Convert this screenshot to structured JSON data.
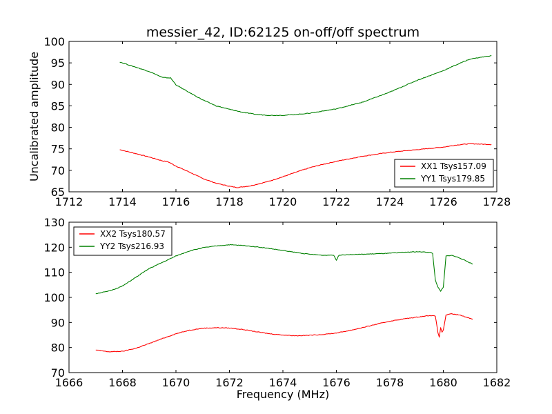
{
  "chart_data": [
    {
      "type": "line",
      "title": "messier_42, ID:62125 on-off/off spectrum",
      "xlabel": "",
      "ylabel": "Uncalibrated amplitude",
      "xlim": [
        1712,
        1728
      ],
      "ylim": [
        65,
        100
      ],
      "xticks": [
        "1712",
        "1714",
        "1716",
        "1718",
        "1720",
        "1722",
        "1724",
        "1726",
        "1728"
      ],
      "yticks": [
        "65",
        "70",
        "75",
        "80",
        "85",
        "90",
        "95",
        "100"
      ],
      "legend_position": "lower-right",
      "grid": false,
      "series": [
        {
          "name": "XX1 Tsys157.09",
          "color": "#ff0000",
          "x": [
            1713.9,
            1714.5,
            1715.0,
            1715.5,
            1715.7,
            1716.0,
            1716.5,
            1717.0,
            1717.5,
            1718.0,
            1718.3,
            1718.8,
            1719.5,
            1720.0,
            1720.5,
            1721.0,
            1721.5,
            1722.0,
            1723.0,
            1724.0,
            1725.0,
            1726.0,
            1726.5,
            1727.0,
            1727.8
          ],
          "y": [
            74.8,
            73.9,
            73.1,
            72.2,
            72.0,
            71.0,
            69.6,
            68.1,
            67.0,
            66.3,
            66.0,
            66.4,
            67.5,
            68.5,
            69.6,
            70.6,
            71.4,
            72.1,
            73.3,
            74.2,
            74.8,
            75.4,
            75.9,
            76.2,
            76.0
          ]
        },
        {
          "name": "YY1 Tsys179.85",
          "color": "#008000",
          "x": [
            1713.9,
            1714.5,
            1715.0,
            1715.5,
            1715.8,
            1716.0,
            1716.5,
            1717.0,
            1717.5,
            1718.0,
            1718.5,
            1719.0,
            1719.5,
            1720.0,
            1720.5,
            1721.0,
            1721.5,
            1722.0,
            1723.0,
            1724.0,
            1725.0,
            1726.0,
            1726.5,
            1727.0,
            1727.8
          ],
          "y": [
            95.2,
            94.0,
            93.0,
            91.6,
            91.5,
            89.9,
            88.1,
            86.4,
            85.0,
            84.2,
            83.5,
            83.0,
            82.8,
            82.8,
            83.0,
            83.3,
            83.8,
            84.3,
            85.9,
            88.2,
            90.9,
            93.2,
            94.6,
            95.9,
            96.7
          ]
        }
      ]
    },
    {
      "type": "line",
      "title": "",
      "xlabel": "Frequency (MHz)",
      "ylabel": "",
      "xlim": [
        1666,
        1682
      ],
      "ylim": [
        70,
        130
      ],
      "xticks": [
        "1666",
        "1668",
        "1670",
        "1672",
        "1674",
        "1676",
        "1678",
        "1680",
        "1682"
      ],
      "yticks": [
        "70",
        "80",
        "90",
        "100",
        "110",
        "120",
        "130"
      ],
      "legend_position": "upper-left",
      "grid": false,
      "series": [
        {
          "name": "XX2 Tsys180.57",
          "color": "#ff0000",
          "x": [
            1667.0,
            1667.5,
            1668.0,
            1668.5,
            1669.0,
            1669.5,
            1670.0,
            1670.5,
            1671.0,
            1671.5,
            1672.0,
            1672.5,
            1673.0,
            1673.5,
            1674.0,
            1674.5,
            1675.0,
            1675.5,
            1676.0,
            1676.5,
            1677.0,
            1677.5,
            1678.0,
            1678.5,
            1679.0,
            1679.5,
            1679.7,
            1679.8,
            1679.85,
            1679.9,
            1679.95,
            1680.0,
            1680.1,
            1680.3,
            1680.6,
            1681.1
          ],
          "y": [
            79.0,
            78.3,
            78.5,
            79.7,
            81.6,
            83.6,
            85.5,
            86.9,
            87.7,
            87.9,
            87.8,
            87.2,
            86.3,
            85.5,
            85.0,
            84.7,
            84.9,
            85.2,
            85.8,
            86.8,
            88.0,
            89.3,
            90.5,
            91.4,
            92.1,
            92.8,
            92.5,
            86.0,
            84.0,
            88.0,
            86.0,
            87.0,
            93.0,
            93.4,
            93.0,
            91.3
          ]
        },
        {
          "name": "YY2 Tsys216.93",
          "color": "#008000",
          "x": [
            1667.0,
            1667.5,
            1668.0,
            1668.5,
            1669.0,
            1669.5,
            1670.0,
            1670.5,
            1671.0,
            1671.5,
            1672.0,
            1672.5,
            1673.0,
            1673.5,
            1674.0,
            1674.5,
            1675.0,
            1675.5,
            1675.9,
            1676.0,
            1676.1,
            1676.5,
            1677.0,
            1677.5,
            1678.0,
            1678.5,
            1679.0,
            1679.5,
            1679.6,
            1679.7,
            1679.8,
            1679.9,
            1680.0,
            1680.1,
            1680.3,
            1680.6,
            1681.1
          ],
          "y": [
            101.5,
            102.5,
            104.5,
            108.0,
            111.5,
            114.0,
            116.5,
            118.5,
            119.8,
            120.5,
            121.0,
            120.7,
            120.2,
            119.5,
            118.7,
            117.9,
            117.2,
            116.8,
            116.9,
            114.8,
            116.9,
            117.1,
            117.2,
            117.4,
            117.6,
            118.0,
            118.2,
            118.0,
            117.5,
            107.0,
            104.0,
            102.5,
            104.0,
            116.5,
            116.8,
            115.8,
            113.3
          ]
        }
      ]
    }
  ]
}
